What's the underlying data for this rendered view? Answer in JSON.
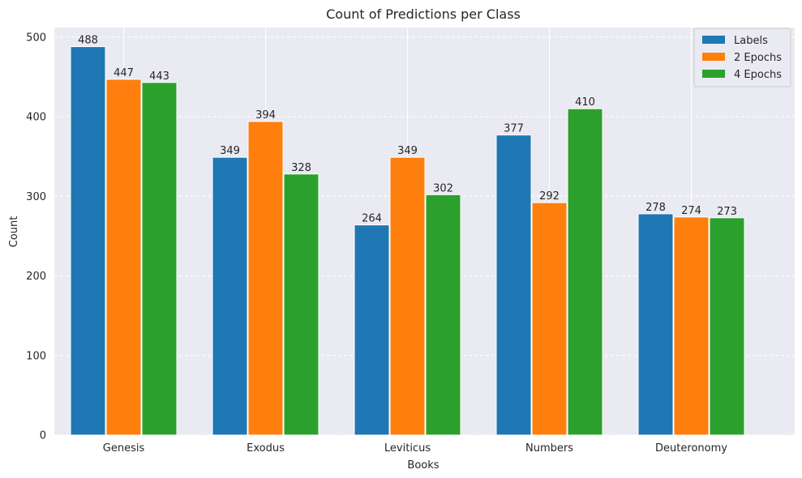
{
  "chart_data": {
    "type": "bar",
    "title": "Count of Predictions per Class",
    "xlabel": "Books",
    "ylabel": "Count",
    "categories": [
      "Genesis",
      "Exodus",
      "Leviticus",
      "Numbers",
      "Deuteronomy"
    ],
    "series": [
      {
        "name": "Labels",
        "values": [
          488,
          349,
          264,
          377,
          278
        ],
        "color": "#1f77b4"
      },
      {
        "name": "2 Epochs",
        "values": [
          447,
          394,
          349,
          292,
          274
        ],
        "color": "#ff7f0e"
      },
      {
        "name": "4 Epochs",
        "values": [
          443,
          328,
          302,
          410,
          273
        ],
        "color": "#2ca02c"
      }
    ],
    "ylim": [
      0,
      512
    ],
    "yticks": [
      0,
      100,
      200,
      300,
      400,
      500
    ],
    "grid": true,
    "legend": "top-right",
    "background": "#eaeaf2"
  }
}
